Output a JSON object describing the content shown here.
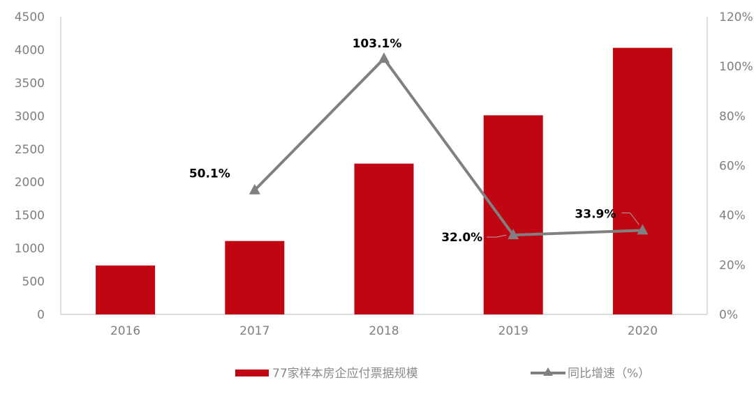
{
  "chart_data": {
    "type": "bar+line",
    "categories": [
      "2016",
      "2017",
      "2018",
      "2019",
      "2020"
    ],
    "series": [
      {
        "name": "77家样本房企应付票据规模",
        "type": "bar",
        "axis": "left",
        "values": [
          740,
          1110,
          2280,
          3010,
          4030
        ],
        "color": "#c00613"
      },
      {
        "name": "同比增速（%）",
        "type": "line",
        "axis": "right",
        "marker": "triangle",
        "values": [
          null,
          50.1,
          103.1,
          32.0,
          33.9
        ],
        "labels": [
          "",
          "50.1%",
          "103.1%",
          "32.0%",
          "33.9%"
        ],
        "color": "#808080"
      }
    ],
    "y_left": {
      "range": [
        0,
        4500
      ],
      "ticks": [
        "0",
        "500",
        "1000",
        "1500",
        "2000",
        "2500",
        "3000",
        "3500",
        "4000",
        "4500"
      ]
    },
    "y_right": {
      "range": [
        0,
        120
      ],
      "ticks": [
        "0%",
        "20%",
        "40%",
        "60%",
        "80%",
        "100%",
        "120%"
      ]
    },
    "grid": false,
    "legend": "bottom"
  }
}
